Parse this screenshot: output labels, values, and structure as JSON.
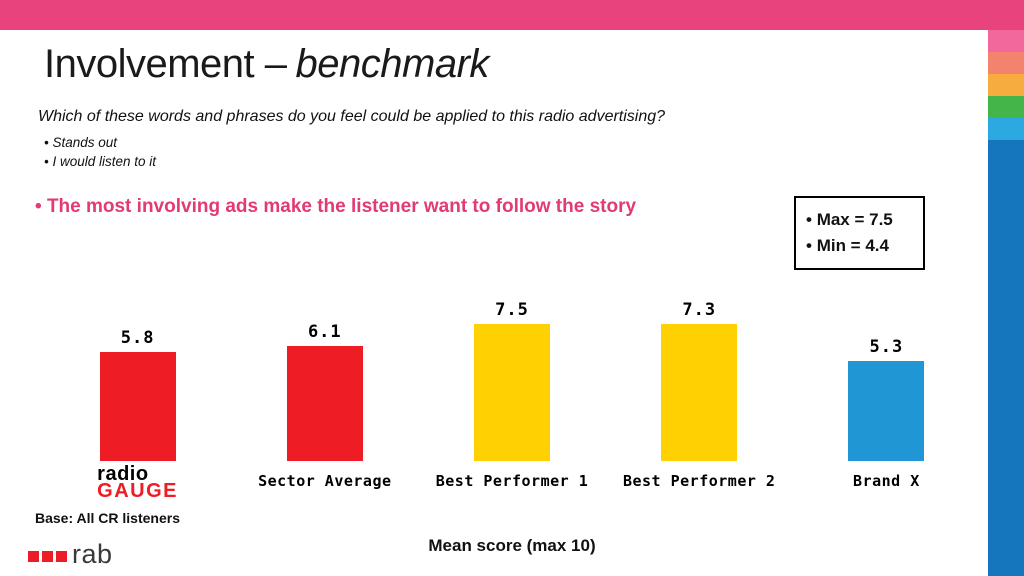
{
  "colors": {
    "top_bar": "#E8437C",
    "highlight": "#E23A72",
    "bar_red": "#EE1C25",
    "bar_yellow": "#FFD103",
    "bar_blue": "#2096D5",
    "side_blue": "#1576BD",
    "rab_text": "#3A3A3A"
  },
  "decoration": {
    "stripes": [
      "#F2679C",
      "#F4836D",
      "#F7AC3F",
      "#44B649",
      "#2BA9E0"
    ]
  },
  "header": {
    "title_main": "Involvement –",
    "title_italic": "benchmark"
  },
  "intro": {
    "question": "Which of these words and phrases do you feel could be applied to this radio advertising?",
    "bullets": [
      "Stands out",
      "I would listen to it"
    ],
    "highlight": "The most involving ads make the listener want to follow the story"
  },
  "stats_box": {
    "max": "Max = 7.5",
    "min": "Min = 4.4"
  },
  "chart_data": {
    "type": "bar",
    "title": "Involvement – benchmark",
    "categories": [
      "radio GAUGE",
      "Sector Average",
      "Best Performer 1",
      "Best Performer 2",
      "Brand X"
    ],
    "values": [
      5.8,
      6.1,
      7.5,
      7.3,
      5.3
    ],
    "colors": [
      "#EE1C25",
      "#EE1C25",
      "#FFD103",
      "#FFD103",
      "#2096D5"
    ],
    "ylim": [
      0,
      10
    ],
    "xlabel": "Mean score (max 10)",
    "ylabel": "",
    "grid": false,
    "legend": "none"
  },
  "logo": {
    "line1": "radio",
    "line2": "GAUGE"
  },
  "footer": {
    "base_note": "Base: All CR listeners",
    "axis_note": "Mean score (max 10)",
    "rab": "rab"
  }
}
